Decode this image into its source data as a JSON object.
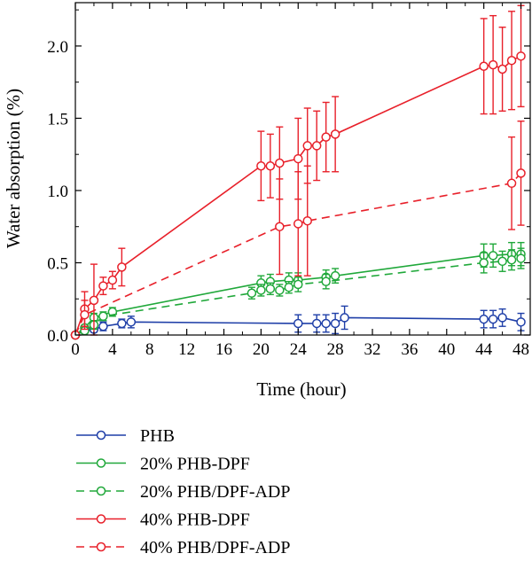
{
  "chart_data": {
    "type": "line",
    "xlabel": "Time (hour)",
    "ylabel": "Water absorption (%)",
    "xlim": [
      0,
      49
    ],
    "ylim": [
      0,
      2.3
    ],
    "xticks": [
      "0",
      "4",
      "8",
      "12",
      "16",
      "20",
      "24",
      "28",
      "32",
      "36",
      "40",
      "44",
      "48"
    ],
    "yticks": [
      "0.0",
      "0.5",
      "1.0",
      "1.5",
      "2.0"
    ],
    "grid": false,
    "legend_position": "bottom",
    "series": [
      {
        "name": "PHB",
        "color": "#1f3fa8",
        "dashed": false,
        "points": [
          {
            "x": 0,
            "y": 0.0,
            "err": 0
          },
          {
            "x": 1,
            "y": 0.03,
            "err": 0.02
          },
          {
            "x": 2,
            "y": 0.04,
            "err": 0.02
          },
          {
            "x": 3,
            "y": 0.06,
            "err": 0.03
          },
          {
            "x": 5,
            "y": 0.08,
            "err": 0.03
          },
          {
            "x": 6,
            "y": 0.09,
            "err": 0.04
          },
          {
            "x": 24,
            "y": 0.08,
            "err": 0.06
          },
          {
            "x": 26,
            "y": 0.08,
            "err": 0.06
          },
          {
            "x": 27,
            "y": 0.08,
            "err": 0.06
          },
          {
            "x": 28,
            "y": 0.08,
            "err": 0.07
          },
          {
            "x": 29,
            "y": 0.12,
            "err": 0.08
          },
          {
            "x": 44,
            "y": 0.11,
            "err": 0.06
          },
          {
            "x": 45,
            "y": 0.11,
            "err": 0.06
          },
          {
            "x": 46,
            "y": 0.12,
            "err": 0.06
          },
          {
            "x": 48,
            "y": 0.09,
            "err": 0.06
          }
        ]
      },
      {
        "name": "20% PHB-DPF",
        "color": "#20a83a",
        "dashed": false,
        "points": [
          {
            "x": 0,
            "y": 0.0,
            "err": 0
          },
          {
            "x": 1,
            "y": 0.05,
            "err": 0.02
          },
          {
            "x": 2,
            "y": 0.12,
            "err": 0.03
          },
          {
            "x": 4,
            "y": 0.16,
            "err": 0.03
          },
          {
            "x": 20,
            "y": 0.36,
            "err": 0.05
          },
          {
            "x": 21,
            "y": 0.37,
            "err": 0.05
          },
          {
            "x": 23,
            "y": 0.38,
            "err": 0.05
          },
          {
            "x": 24,
            "y": 0.38,
            "err": 0.05
          },
          {
            "x": 27,
            "y": 0.4,
            "err": 0.05
          },
          {
            "x": 28,
            "y": 0.41,
            "err": 0.05
          },
          {
            "x": 44,
            "y": 0.55,
            "err": 0.08
          },
          {
            "x": 45,
            "y": 0.55,
            "err": 0.08
          },
          {
            "x": 47,
            "y": 0.56,
            "err": 0.08
          },
          {
            "x": 48,
            "y": 0.56,
            "err": 0.08
          }
        ]
      },
      {
        "name": "20% PHB/DPF-ADP",
        "color": "#20a83a",
        "dashed": true,
        "points": [
          {
            "x": 0,
            "y": 0.0,
            "err": 0
          },
          {
            "x": 1,
            "y": 0.03,
            "err": 0.02
          },
          {
            "x": 2,
            "y": 0.07,
            "err": 0.03
          },
          {
            "x": 3,
            "y": 0.13,
            "err": 0.03
          },
          {
            "x": 19,
            "y": 0.29,
            "err": 0.04
          },
          {
            "x": 20,
            "y": 0.31,
            "err": 0.04
          },
          {
            "x": 21,
            "y": 0.32,
            "err": 0.04
          },
          {
            "x": 22,
            "y": 0.31,
            "err": 0.04
          },
          {
            "x": 23,
            "y": 0.33,
            "err": 0.04
          },
          {
            "x": 24,
            "y": 0.35,
            "err": 0.05
          },
          {
            "x": 27,
            "y": 0.37,
            "err": 0.05
          },
          {
            "x": 44,
            "y": 0.5,
            "err": 0.07
          },
          {
            "x": 46,
            "y": 0.51,
            "err": 0.07
          },
          {
            "x": 47,
            "y": 0.52,
            "err": 0.07
          },
          {
            "x": 48,
            "y": 0.53,
            "err": 0.07
          }
        ]
      },
      {
        "name": "40% PHB-DPF",
        "color": "#e8202a",
        "dashed": false,
        "points": [
          {
            "x": 0,
            "y": 0.0,
            "err": 0
          },
          {
            "x": 1,
            "y": 0.18,
            "err": 0.12
          },
          {
            "x": 2,
            "y": 0.24,
            "err": 0.25
          },
          {
            "x": 3,
            "y": 0.34,
            "err": 0.06
          },
          {
            "x": 4,
            "y": 0.38,
            "err": 0.06
          },
          {
            "x": 5,
            "y": 0.47,
            "err": 0.13
          },
          {
            "x": 20,
            "y": 1.17,
            "err": 0.24
          },
          {
            "x": 21,
            "y": 1.17,
            "err": 0.22
          },
          {
            "x": 22,
            "y": 1.19,
            "err": 0.25
          },
          {
            "x": 24,
            "y": 1.22,
            "err": 0.28
          },
          {
            "x": 25,
            "y": 1.31,
            "err": 0.26
          },
          {
            "x": 26,
            "y": 1.31,
            "err": 0.24
          },
          {
            "x": 27,
            "y": 1.37,
            "err": 0.24
          },
          {
            "x": 28,
            "y": 1.39,
            "err": 0.26
          },
          {
            "x": 44,
            "y": 1.86,
            "err": 0.33
          },
          {
            "x": 45,
            "y": 1.87,
            "err": 0.34
          },
          {
            "x": 46,
            "y": 1.84,
            "err": 0.29
          },
          {
            "x": 47,
            "y": 1.9,
            "err": 0.34
          },
          {
            "x": 48,
            "y": 1.93,
            "err": 0.35
          }
        ]
      },
      {
        "name": "40% PHB/DPF-ADP",
        "color": "#e8202a",
        "dashed": true,
        "points": [
          {
            "x": 0,
            "y": 0.0,
            "err": 0
          },
          {
            "x": 1,
            "y": 0.14,
            "err": 0.1
          },
          {
            "x": 22,
            "y": 0.75,
            "err": 0.33
          },
          {
            "x": 24,
            "y": 0.77,
            "err": 0.36
          },
          {
            "x": 25,
            "y": 0.79,
            "err": 0.38
          },
          {
            "x": 47,
            "y": 1.05,
            "err": 0.32
          },
          {
            "x": 48,
            "y": 1.12,
            "err": 0.36
          }
        ]
      }
    ]
  }
}
